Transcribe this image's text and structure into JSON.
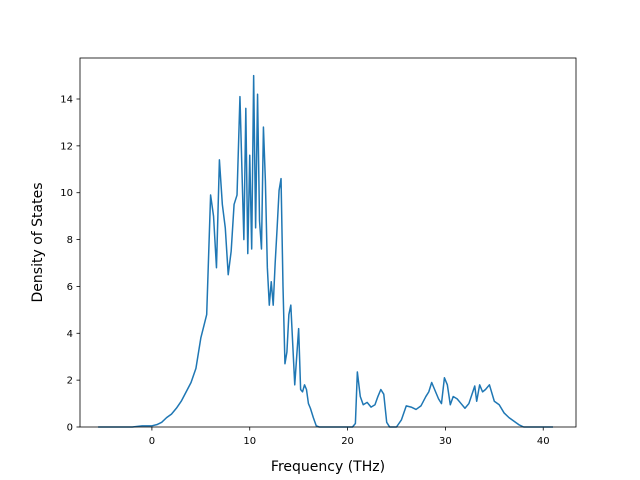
{
  "chart_data": {
    "type": "line",
    "title": "",
    "xlabel": "Frequency (THz)",
    "ylabel": "Density of States",
    "xlim": [
      -7.35,
      43.35
    ],
    "ylim": [
      0,
      15.75
    ],
    "x_ticks": [
      0,
      10,
      20,
      30,
      40
    ],
    "y_ticks": [
      0,
      2,
      4,
      6,
      8,
      10,
      12,
      14
    ],
    "grid": false,
    "legend": "none",
    "line_color": "#1f77b4",
    "series": [
      {
        "x": [
          -5.5,
          -2.0,
          -1.0,
          0.0,
          0.5,
          1.0,
          1.5,
          2.0,
          2.5,
          3.0,
          3.5,
          4.0,
          4.5,
          5.0,
          5.3,
          5.6,
          6.0,
          6.3,
          6.6,
          6.9,
          7.2,
          7.5,
          7.8,
          8.1,
          8.4,
          8.7,
          9.0,
          9.2,
          9.4,
          9.6,
          9.8,
          10.0,
          10.2,
          10.4,
          10.6,
          10.8,
          11.0,
          11.2,
          11.4,
          11.6,
          11.8,
          12.0,
          12.2,
          12.4,
          12.6,
          12.8,
          13.0,
          13.2,
          13.4,
          13.6,
          13.8,
          14.0,
          14.2,
          14.4,
          14.6,
          14.8,
          15.0,
          15.2,
          15.4,
          15.6,
          15.8,
          16.0,
          16.2,
          16.5,
          16.8,
          17.1,
          17.4,
          17.7,
          18.0,
          19.0,
          20.0,
          20.5,
          20.8,
          21.0,
          21.3,
          21.6,
          22.0,
          22.4,
          22.8,
          23.1,
          23.4,
          23.7,
          24.0,
          24.3,
          25.0,
          25.5,
          26.0,
          26.5,
          27.0,
          27.5,
          28.0,
          28.3,
          28.6,
          29.0,
          29.3,
          29.6,
          29.9,
          30.2,
          30.5,
          30.8,
          31.2,
          31.6,
          32.0,
          32.4,
          32.8,
          33.0,
          33.2,
          33.5,
          33.8,
          34.1,
          34.5,
          35.0,
          35.5,
          36.0,
          36.5,
          37.0,
          37.5,
          38.0,
          39.0,
          41.0
        ],
        "y": [
          0.0,
          0.0,
          0.05,
          0.05,
          0.1,
          0.2,
          0.4,
          0.55,
          0.8,
          1.1,
          1.5,
          1.9,
          2.5,
          3.8,
          4.3,
          4.8,
          9.9,
          9.0,
          6.8,
          11.4,
          9.5,
          8.5,
          6.5,
          7.5,
          9.5,
          9.9,
          14.1,
          11.0,
          8.0,
          13.6,
          7.4,
          11.6,
          7.6,
          15.0,
          8.5,
          14.2,
          8.8,
          7.6,
          12.8,
          10.5,
          6.8,
          5.2,
          6.2,
          5.2,
          7.0,
          8.5,
          10.1,
          10.6,
          6.0,
          2.7,
          3.2,
          4.8,
          5.2,
          3.5,
          1.8,
          3.0,
          4.2,
          1.6,
          1.5,
          1.8,
          1.6,
          1.0,
          0.8,
          0.4,
          0.05,
          0.0,
          0.0,
          0.0,
          0.0,
          0.0,
          0.0,
          0.0,
          0.15,
          2.35,
          1.3,
          0.95,
          1.05,
          0.85,
          0.95,
          1.3,
          1.6,
          1.4,
          0.2,
          0.0,
          0.0,
          0.3,
          0.9,
          0.85,
          0.75,
          0.9,
          1.3,
          1.5,
          1.9,
          1.5,
          1.2,
          1.0,
          2.1,
          1.8,
          0.95,
          1.3,
          1.2,
          1.0,
          0.8,
          1.0,
          1.5,
          1.75,
          1.1,
          1.8,
          1.5,
          1.6,
          1.8,
          1.1,
          0.95,
          0.6,
          0.4,
          0.25,
          0.1,
          0.0,
          0.0,
          0.0
        ]
      }
    ]
  }
}
